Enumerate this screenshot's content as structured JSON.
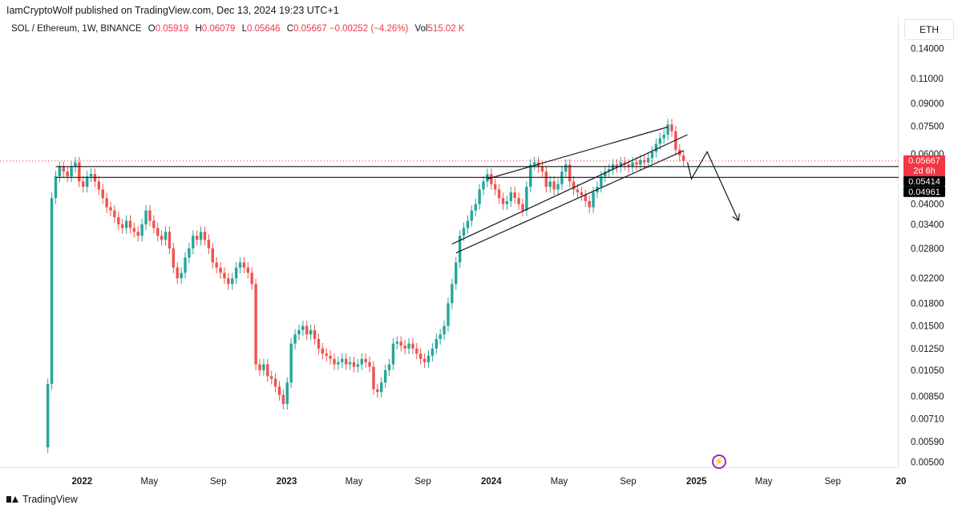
{
  "header": {
    "publisher": "IamCryptoWolf published on TradingView.com, Dec 13, 2024 19:23 UTC+1"
  },
  "legend": {
    "symbol": "SOL / Ethereum, 1W, BINANCE",
    "o_label": "O",
    "o_value": "0.05919",
    "h_label": "H",
    "h_value": "0.06079",
    "l_label": "L",
    "l_value": "0.05646",
    "c_label": "C",
    "c_value": "0.05667",
    "change": "−0.00252 (−4.26%)",
    "vol_label": "Vol",
    "vol_value": "515.02 K"
  },
  "currency": "ETH",
  "footer": {
    "brand": "TradingView"
  },
  "icons": {
    "logo": "tradingview-logo-icon",
    "snapshot": "lightning-icon"
  },
  "colors": {
    "up": "#26a69a",
    "down": "#ef5350",
    "price_tag": "#f23645",
    "black_tag": "#000000"
  },
  "chart_data": {
    "type": "candlestick",
    "scale": "log",
    "ylim": [
      0.0048,
      0.16
    ],
    "y_ticks": [
      "0.14000",
      "0.11000",
      "0.09000",
      "0.07500",
      "0.06000",
      "0.04000",
      "0.03400",
      "0.02800",
      "0.02200",
      "0.01800",
      "0.01500",
      "0.01250",
      "0.01050",
      "0.00850",
      "0.00710",
      "0.00590",
      "0.00500"
    ],
    "x_ticks": [
      {
        "label": "2022",
        "date": "2022-01-01",
        "bold": true
      },
      {
        "label": "May",
        "date": "2022-05-01"
      },
      {
        "label": "Sep",
        "date": "2022-09-01"
      },
      {
        "label": "2023",
        "date": "2023-01-01",
        "bold": true
      },
      {
        "label": "May",
        "date": "2023-05-01"
      },
      {
        "label": "Sep",
        "date": "2023-09-01"
      },
      {
        "label": "2024",
        "date": "2024-01-01",
        "bold": true
      },
      {
        "label": "May",
        "date": "2024-05-01"
      },
      {
        "label": "Sep",
        "date": "2024-09-01"
      },
      {
        "label": "2025",
        "date": "2025-01-01",
        "bold": true
      },
      {
        "label": "May",
        "date": "2025-05-01"
      },
      {
        "label": "Sep",
        "date": "2025-09-01"
      },
      {
        "label": "20",
        "date": "2026-01-01",
        "bold": true
      }
    ],
    "price_labels": [
      {
        "value": "0.05667",
        "sub": "2d 6h",
        "style": "red"
      },
      {
        "value": "0.05414",
        "style": "black"
      },
      {
        "value": "0.04961",
        "style": "black"
      }
    ],
    "last_price": 0.05667,
    "horizontal_lines": [
      0.05414,
      0.04961
    ],
    "trend_lines": [
      [
        [
          "2023-12-25",
          0.049
        ],
        [
          "2024-11-11",
          0.0745
        ]
      ],
      [
        [
          "2023-10-23",
          0.029
        ],
        [
          "2024-12-16",
          0.07
        ]
      ],
      [
        [
          "2023-10-30",
          0.027
        ],
        [
          "2024-12-09",
          0.0615
        ]
      ]
    ],
    "projection_path": [
      [
        "2024-12-16",
        0.056
      ],
      [
        "2024-12-23",
        0.049
      ],
      [
        "2025-01-20",
        0.061
      ],
      [
        "2025-03-17",
        0.035
      ]
    ],
    "weekly_closes": [
      [
        "2021-11-01",
        0.0094
      ],
      [
        "2021-11-08",
        0.042
      ],
      [
        "2021-11-15",
        0.05
      ],
      [
        "2021-11-22",
        0.054
      ],
      [
        "2021-11-29",
        0.052
      ],
      [
        "2021-12-06",
        0.05
      ],
      [
        "2021-12-13",
        0.054
      ],
      [
        "2021-12-20",
        0.056
      ],
      [
        "2021-12-27",
        0.048
      ],
      [
        "2022-01-03",
        0.046
      ],
      [
        "2022-01-10",
        0.05
      ],
      [
        "2022-01-17",
        0.051
      ],
      [
        "2022-01-24",
        0.048
      ],
      [
        "2022-01-31",
        0.045
      ],
      [
        "2022-02-07",
        0.042
      ],
      [
        "2022-02-14",
        0.039
      ],
      [
        "2022-02-21",
        0.038
      ],
      [
        "2022-02-28",
        0.036
      ],
      [
        "2022-03-07",
        0.034
      ],
      [
        "2022-03-14",
        0.033
      ],
      [
        "2022-03-21",
        0.035
      ],
      [
        "2022-03-28",
        0.033
      ],
      [
        "2022-04-04",
        0.032
      ],
      [
        "2022-04-11",
        0.031
      ],
      [
        "2022-04-18",
        0.034
      ],
      [
        "2022-04-25",
        0.038
      ],
      [
        "2022-05-02",
        0.035
      ],
      [
        "2022-05-09",
        0.033
      ],
      [
        "2022-05-16",
        0.031
      ],
      [
        "2022-05-23",
        0.03
      ],
      [
        "2022-05-30",
        0.032
      ],
      [
        "2022-06-06",
        0.028
      ],
      [
        "2022-06-13",
        0.024
      ],
      [
        "2022-06-20",
        0.022
      ],
      [
        "2022-06-27",
        0.023
      ],
      [
        "2022-07-04",
        0.026
      ],
      [
        "2022-07-11",
        0.028
      ],
      [
        "2022-07-18",
        0.031
      ],
      [
        "2022-07-25",
        0.03
      ],
      [
        "2022-08-01",
        0.032
      ],
      [
        "2022-08-08",
        0.03
      ],
      [
        "2022-08-15",
        0.028
      ],
      [
        "2022-08-22",
        0.025
      ],
      [
        "2022-08-29",
        0.024
      ],
      [
        "2022-09-05",
        0.023
      ],
      [
        "2022-09-12",
        0.022
      ],
      [
        "2022-09-19",
        0.021
      ],
      [
        "2022-09-26",
        0.022
      ],
      [
        "2022-10-03",
        0.024
      ],
      [
        "2022-10-10",
        0.025
      ],
      [
        "2022-10-17",
        0.024
      ],
      [
        "2022-10-24",
        0.023
      ],
      [
        "2022-10-31",
        0.021
      ],
      [
        "2022-11-07",
        0.011
      ],
      [
        "2022-11-14",
        0.0105
      ],
      [
        "2022-11-21",
        0.011
      ],
      [
        "2022-11-28",
        0.01
      ],
      [
        "2022-12-05",
        0.0098
      ],
      [
        "2022-12-12",
        0.0092
      ],
      [
        "2022-12-19",
        0.0086
      ],
      [
        "2022-12-26",
        0.008
      ],
      [
        "2023-01-02",
        0.0095
      ],
      [
        "2023-01-09",
        0.013
      ],
      [
        "2023-01-16",
        0.014
      ],
      [
        "2023-01-23",
        0.0145
      ],
      [
        "2023-01-30",
        0.015
      ],
      [
        "2023-02-06",
        0.014
      ],
      [
        "2023-02-13",
        0.0145
      ],
      [
        "2023-02-20",
        0.0135
      ],
      [
        "2023-02-27",
        0.0125
      ],
      [
        "2023-03-06",
        0.012
      ],
      [
        "2023-03-13",
        0.0118
      ],
      [
        "2023-03-20",
        0.0115
      ],
      [
        "2023-03-27",
        0.011
      ],
      [
        "2023-04-03",
        0.0112
      ],
      [
        "2023-04-10",
        0.0115
      ],
      [
        "2023-04-17",
        0.011
      ],
      [
        "2023-04-24",
        0.0112
      ],
      [
        "2023-05-01",
        0.0108
      ],
      [
        "2023-05-08",
        0.011
      ],
      [
        "2023-05-15",
        0.0115
      ],
      [
        "2023-05-22",
        0.0112
      ],
      [
        "2023-05-29",
        0.0108
      ],
      [
        "2023-06-05",
        0.009
      ],
      [
        "2023-06-12",
        0.0088
      ],
      [
        "2023-06-19",
        0.0095
      ],
      [
        "2023-06-26",
        0.0105
      ],
      [
        "2023-07-03",
        0.011
      ],
      [
        "2023-07-10",
        0.013
      ],
      [
        "2023-07-17",
        0.0132
      ],
      [
        "2023-07-24",
        0.0128
      ],
      [
        "2023-07-31",
        0.0125
      ],
      [
        "2023-08-07",
        0.013
      ],
      [
        "2023-08-14",
        0.0125
      ],
      [
        "2023-08-21",
        0.012
      ],
      [
        "2023-08-28",
        0.0115
      ],
      [
        "2023-09-04",
        0.0112
      ],
      [
        "2023-09-11",
        0.0118
      ],
      [
        "2023-09-18",
        0.0125
      ],
      [
        "2023-09-25",
        0.0135
      ],
      [
        "2023-10-02",
        0.014
      ],
      [
        "2023-10-09",
        0.015
      ],
      [
        "2023-10-16",
        0.018
      ],
      [
        "2023-10-23",
        0.021
      ],
      [
        "2023-10-30",
        0.025
      ],
      [
        "2023-11-06",
        0.031
      ],
      [
        "2023-11-13",
        0.033
      ],
      [
        "2023-11-20",
        0.035
      ],
      [
        "2023-11-27",
        0.038
      ],
      [
        "2023-12-04",
        0.04
      ],
      [
        "2023-12-11",
        0.045
      ],
      [
        "2023-12-18",
        0.048
      ],
      [
        "2023-12-25",
        0.051
      ],
      [
        "2024-01-01",
        0.047
      ],
      [
        "2024-01-08",
        0.045
      ],
      [
        "2024-01-15",
        0.042
      ],
      [
        "2024-01-22",
        0.04
      ],
      [
        "2024-01-29",
        0.041
      ],
      [
        "2024-02-05",
        0.044
      ],
      [
        "2024-02-12",
        0.042
      ],
      [
        "2024-02-19",
        0.04
      ],
      [
        "2024-02-26",
        0.038
      ],
      [
        "2024-03-04",
        0.046
      ],
      [
        "2024-03-11",
        0.055
      ],
      [
        "2024-03-18",
        0.056
      ],
      [
        "2024-03-25",
        0.054
      ],
      [
        "2024-04-01",
        0.052
      ],
      [
        "2024-04-08",
        0.046
      ],
      [
        "2024-04-15",
        0.048
      ],
      [
        "2024-04-22",
        0.045
      ],
      [
        "2024-04-29",
        0.047
      ],
      [
        "2024-05-06",
        0.052
      ],
      [
        "2024-05-13",
        0.055
      ],
      [
        "2024-05-20",
        0.048
      ],
      [
        "2024-05-27",
        0.045
      ],
      [
        "2024-06-03",
        0.044
      ],
      [
        "2024-06-10",
        0.043
      ],
      [
        "2024-06-17",
        0.041
      ],
      [
        "2024-06-24",
        0.039
      ],
      [
        "2024-07-01",
        0.044
      ],
      [
        "2024-07-08",
        0.046
      ],
      [
        "2024-07-15",
        0.05
      ],
      [
        "2024-07-22",
        0.052
      ],
      [
        "2024-07-29",
        0.053
      ],
      [
        "2024-08-05",
        0.055
      ],
      [
        "2024-08-12",
        0.054
      ],
      [
        "2024-08-19",
        0.056
      ],
      [
        "2024-08-26",
        0.055
      ],
      [
        "2024-09-02",
        0.054
      ],
      [
        "2024-09-09",
        0.056
      ],
      [
        "2024-09-16",
        0.055
      ],
      [
        "2024-09-23",
        0.057
      ],
      [
        "2024-09-30",
        0.056
      ],
      [
        "2024-10-07",
        0.058
      ],
      [
        "2024-10-14",
        0.061
      ],
      [
        "2024-10-21",
        0.065
      ],
      [
        "2024-10-28",
        0.068
      ],
      [
        "2024-11-04",
        0.07
      ],
      [
        "2024-11-11",
        0.076
      ],
      [
        "2024-11-18",
        0.072
      ],
      [
        "2024-11-25",
        0.062
      ],
      [
        "2024-12-02",
        0.0592
      ],
      [
        "2024-12-09",
        0.05667
      ]
    ]
  }
}
